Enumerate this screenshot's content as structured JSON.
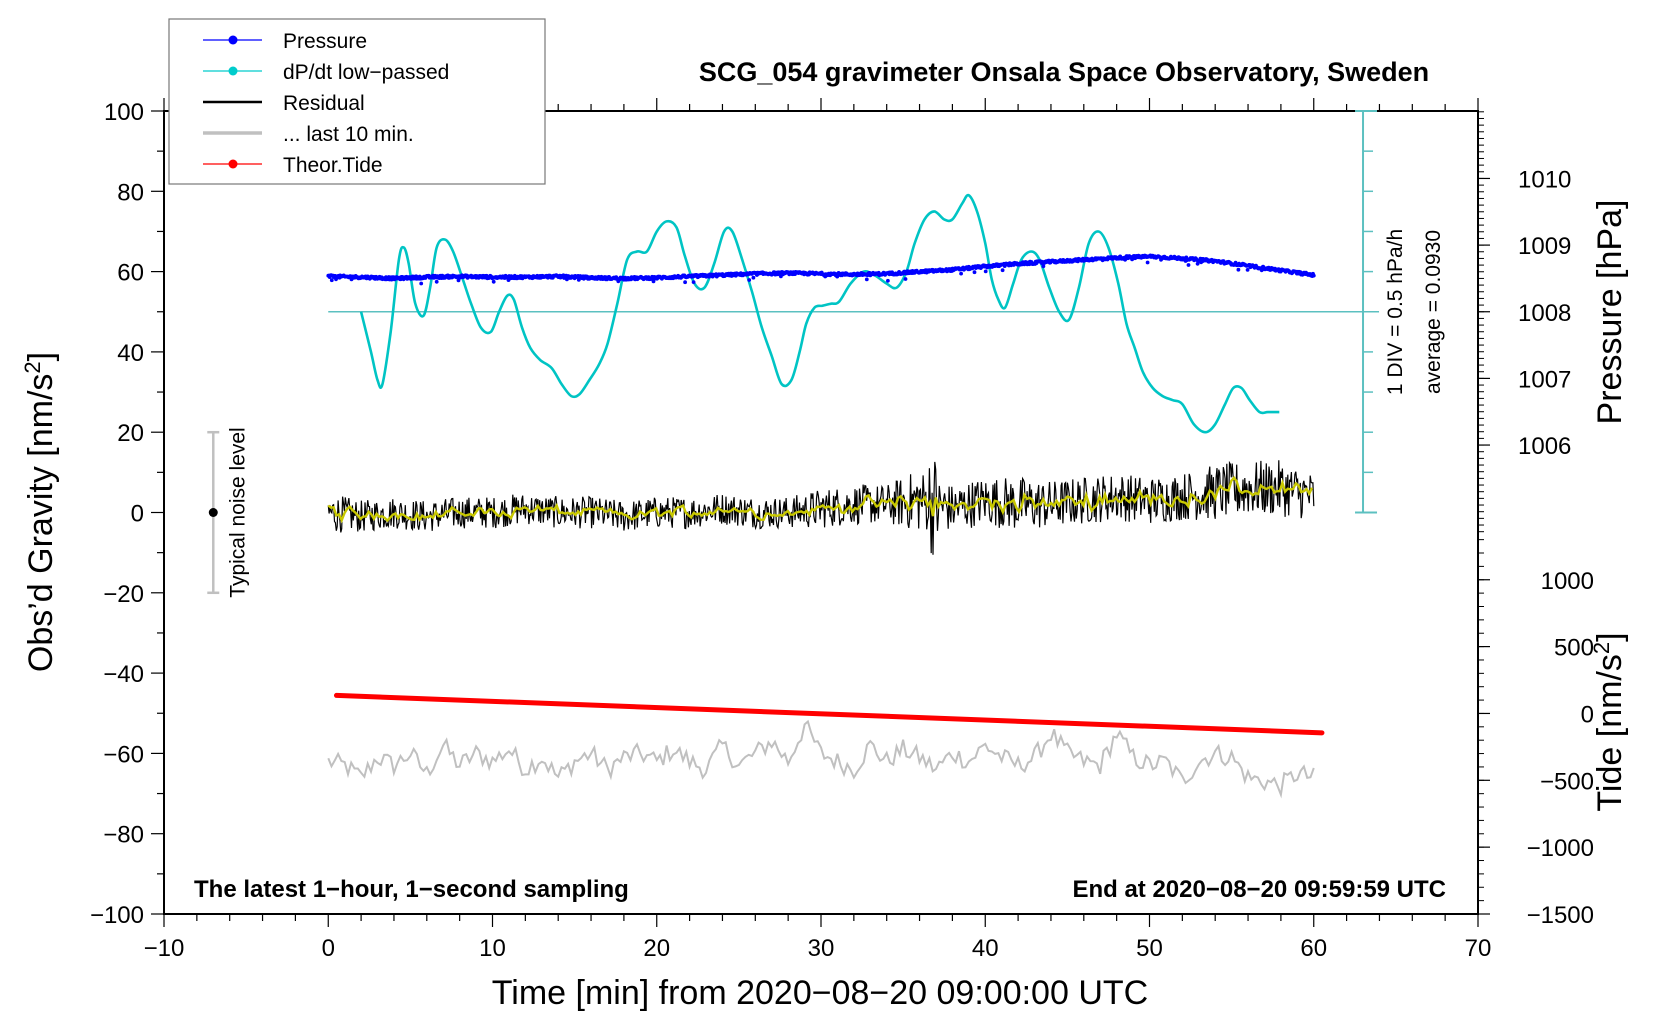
{
  "chart_data": {
    "type": "line",
    "title": "SCG_054 gravimeter Onsala Space Observatory, Sweden",
    "xlabel": "Time [min] from 2020−08−20 09:00:00 UTC",
    "ylabel": "Obs’d Gravity [nm/s²]",
    "ylabel_base": "Obs’d Gravity [nm/s",
    "ylabel_sup": "2",
    "ylabel_end": "]",
    "xlim": [
      -10,
      70
    ],
    "ylim": [
      -100,
      100
    ],
    "x_ticks": [
      -10,
      0,
      10,
      20,
      30,
      40,
      50,
      60,
      70
    ],
    "x_tick_labels": [
      "−10",
      "0",
      "10",
      "20",
      "30",
      "40",
      "50",
      "60",
      "70"
    ],
    "y_ticks": [
      100,
      80,
      60,
      40,
      20,
      0,
      -20,
      -40,
      -60,
      -80,
      -100
    ],
    "y_tick_labels": [
      "100",
      "80",
      "60",
      "40",
      "20",
      "0",
      "−20",
      "−40",
      "−60",
      "−80",
      "−100"
    ],
    "right_axes": [
      {
        "name": "pressure",
        "label": "Pressure [hPa]",
        "ticks": [
          1010,
          1009,
          1008,
          1007,
          1006
        ],
        "tick_labels": [
          "1010",
          "1009",
          "1008",
          "1007",
          "1006"
        ],
        "ref_value": 1008,
        "ref_gravity": 50,
        "gravity_per_unit": 16.6
      },
      {
        "name": "tide",
        "label_base": "Tide [nm/s",
        "label_sup": "2",
        "label_end": "]",
        "ticks": [
          1000,
          500,
          0,
          -500,
          -1000,
          -1500
        ],
        "tick_labels": [
          "1000",
          "500",
          "0",
          "−500",
          "−1000",
          "−1500"
        ],
        "ref_value": -1500,
        "ref_gravity": -100,
        "gravity_per_unit": 0.0333
      }
    ],
    "dpdt_scale": {
      "label_div": "1 DIV = 0.5 hPa/h",
      "label_average": "average = 0.0930",
      "zero_gravity": 50,
      "gravity_per_div": 10,
      "divs_up": 5,
      "divs_down": 5,
      "x_min": 63
    },
    "noise_bar": {
      "label": "Typical noise level",
      "x": -7,
      "center": 0,
      "low": -20,
      "high": 20
    },
    "notes": {
      "bottom_left": "The latest 1−hour, 1−second sampling",
      "bottom_right": "End at 2020−08−20 09:59:59 UTC"
    },
    "legend": {
      "position": "top-left",
      "entries": [
        {
          "label": "Pressure",
          "color": "#0000ff",
          "style": "line-dot"
        },
        {
          "label": "dP/dt low−passed",
          "color": "#00cccc",
          "style": "line-dot"
        },
        {
          "label": "Residual",
          "color": "#000000",
          "style": "line"
        },
        {
          "label": "... last 10 min.",
          "color": "#c0c0c0",
          "style": "line"
        },
        {
          "label": "Theor.Tide",
          "color": "#ff0000",
          "style": "line-dot"
        }
      ]
    },
    "series": [
      {
        "name": "Pressure",
        "unit": "hPa",
        "color": "#0000ff",
        "x": [
          0,
          2,
          4,
          6,
          8,
          10,
          12,
          14,
          16,
          18,
          20,
          22,
          24,
          26,
          28,
          30,
          32,
          34,
          36,
          38,
          40,
          42,
          44,
          46,
          48,
          50,
          52,
          54,
          56,
          58,
          60
        ],
        "values": [
          1008.53,
          1008.52,
          1008.5,
          1008.52,
          1008.53,
          1008.52,
          1008.52,
          1008.53,
          1008.51,
          1008.5,
          1008.51,
          1008.53,
          1008.55,
          1008.57,
          1008.58,
          1008.57,
          1008.56,
          1008.57,
          1008.6,
          1008.63,
          1008.68,
          1008.72,
          1008.75,
          1008.78,
          1008.81,
          1008.83,
          1008.8,
          1008.76,
          1008.69,
          1008.62,
          1008.55
        ]
      },
      {
        "name": "dP/dt low-passed",
        "unit": "gravity-axis units (1 DIV = 10)",
        "color": "#00c4c4",
        "x": [
          2.0,
          2.6,
          3.0,
          3.3,
          3.8,
          4.3,
          4.6,
          4.9,
          5.3,
          5.8,
          6.2,
          6.6,
          7.1,
          7.6,
          8.2,
          8.7,
          9.3,
          9.9,
          10.4,
          10.9,
          11.3,
          11.8,
          12.3,
          12.9,
          13.6,
          14.2,
          14.8,
          15.3,
          15.9,
          16.5,
          17.0,
          17.6,
          18.2,
          18.8,
          19.4,
          20.0,
          20.6,
          21.2,
          21.7,
          22.3,
          22.9,
          23.5,
          24.1,
          24.6,
          25.2,
          25.8,
          26.4,
          27.0,
          27.6,
          28.2,
          28.7,
          29.1,
          29.6,
          30.1,
          30.6,
          31.1,
          31.8,
          32.6,
          33.3,
          34.0,
          34.6,
          35.2,
          35.7,
          36.3,
          36.9,
          37.5,
          38.0,
          38.6,
          39.0,
          39.5,
          40.0,
          40.4,
          40.8,
          41.2,
          41.7,
          42.2,
          42.8,
          43.3,
          43.9,
          44.5,
          45.1,
          45.7,
          46.3,
          46.9,
          47.5,
          48.1,
          48.6,
          49.1,
          49.6,
          50.2,
          50.8,
          51.4,
          52.0,
          52.7,
          53.4,
          54.0,
          54.6,
          55.1,
          55.6,
          56.1,
          56.7,
          57.2,
          57.9
        ],
        "values": [
          50,
          40,
          33,
          32,
          45,
          63,
          66,
          62,
          52,
          49,
          56,
          66,
          68,
          65,
          58,
          52,
          46,
          45,
          50,
          54,
          53,
          46,
          41,
          38,
          36,
          32,
          29,
          29.5,
          33,
          37,
          42,
          52,
          63,
          65,
          65,
          70,
          72.5,
          71,
          64,
          57,
          56,
          62,
          70,
          70,
          63,
          55,
          46,
          39,
          32,
          33,
          40,
          47,
          51,
          51.5,
          52,
          52.5,
          57,
          60,
          59,
          57,
          56,
          60,
          67,
          73,
          75,
          73,
          73,
          77,
          79,
          75,
          67,
          58,
          53,
          51,
          57,
          63,
          65,
          63,
          56,
          50,
          48,
          56,
          67,
          70,
          66,
          57,
          47,
          41,
          35,
          31,
          29,
          28,
          27,
          22,
          20,
          22,
          27,
          31,
          31,
          28,
          25,
          25,
          25
        ]
      },
      {
        "name": "Residual",
        "unit": "nm/s²",
        "color": "#000000",
        "smoothed_color": "#c8c800",
        "x_start": 0,
        "x_end": 60,
        "envelope_mean": [
          0,
          -1,
          0,
          -1,
          0,
          0,
          1,
          0,
          0,
          -1,
          0,
          0,
          1,
          0,
          0,
          1,
          2,
          2,
          3,
          1,
          3,
          2,
          2,
          3,
          4,
          3,
          4,
          5,
          6,
          6,
          4
        ],
        "envelope_amplitude": [
          5,
          4,
          4,
          4,
          4,
          4,
          4,
          4,
          4,
          4,
          4,
          4,
          4,
          4,
          4,
          5,
          5,
          5,
          8,
          6,
          6,
          7,
          6,
          6,
          6,
          6,
          6,
          7,
          7,
          7,
          6
        ]
      },
      {
        "name": "... last 10 min.",
        "unit": "nm/s² (offset display)",
        "color": "#c0c0c0",
        "x": [
          0,
          1,
          2,
          3,
          4,
          5,
          6,
          7,
          8,
          9,
          10,
          11,
          12,
          13,
          14,
          15,
          16,
          17,
          18,
          19,
          20,
          21,
          22,
          23,
          24,
          25,
          26,
          27,
          28,
          29,
          30,
          31,
          32,
          33,
          34,
          35,
          36,
          37,
          38,
          39,
          40,
          41,
          42,
          43,
          44,
          45,
          46,
          47,
          48,
          49,
          50,
          51,
          52,
          53,
          54,
          55,
          56,
          57,
          58,
          59,
          60
        ],
        "values": [
          -62,
          -63,
          -66,
          -61,
          -63,
          -60,
          -65,
          -58,
          -63,
          -60,
          -62,
          -59,
          -64,
          -61,
          -66,
          -62,
          -60,
          -64,
          -61,
          -60,
          -62,
          -59,
          -62,
          -64,
          -58,
          -63,
          -60,
          -57,
          -62,
          -53,
          -60,
          -62,
          -64,
          -58,
          -62,
          -59,
          -61,
          -64,
          -60,
          -62,
          -58,
          -61,
          -63,
          -61,
          -55,
          -60,
          -62,
          -63,
          -55,
          -61,
          -63,
          -62,
          -67,
          -62,
          -60,
          -61,
          -66,
          -67,
          -68,
          -65,
          -66
        ]
      },
      {
        "name": "Theor.Tide",
        "unit": "nm/s² (tide axis)",
        "color": "#ff0000",
        "x": [
          0.5,
          60.5
        ],
        "values": [
          135,
          -145
        ]
      }
    ]
  }
}
